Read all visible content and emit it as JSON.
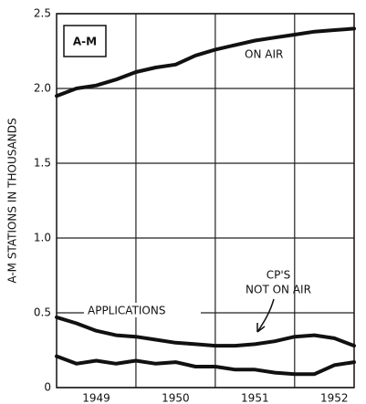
{
  "chart_data": {
    "type": "line",
    "ylabel": "A-M STATIONS IN THOUSANDS",
    "annotations": [
      "A-M",
      "ON AIR",
      "APPLICATIONS",
      "CP'S",
      "NOT ON AIR"
    ],
    "x": [
      1949,
      1949.25,
      1949.5,
      1949.75,
      1950,
      1950.25,
      1950.5,
      1950.75,
      1951,
      1951.25,
      1951.5,
      1951.75,
      1952,
      1952.25,
      1952.5,
      1952.75
    ],
    "series": [
      {
        "name": "ON AIR",
        "color": "#111111",
        "values": [
          1.95,
          2.0,
          2.02,
          2.06,
          2.11,
          2.14,
          2.16,
          2.22,
          2.26,
          2.29,
          2.32,
          2.34,
          2.36,
          2.38,
          2.39,
          2.4
        ]
      },
      {
        "name": "APPLICATIONS",
        "color": "#111111",
        "values": [
          0.47,
          0.43,
          0.38,
          0.35,
          0.34,
          0.32,
          0.3,
          0.29,
          0.28,
          0.28,
          0.29,
          0.31,
          0.34,
          0.35,
          0.33,
          0.28
        ]
      },
      {
        "name": "CP'S NOT ON AIR",
        "color": "#111111",
        "values": [
          0.21,
          0.16,
          0.18,
          0.16,
          0.18,
          0.16,
          0.17,
          0.14,
          0.14,
          0.12,
          0.12,
          0.1,
          0.09,
          0.09,
          0.15,
          0.17
        ]
      }
    ],
    "xlim": [
      1949,
      1952.75
    ],
    "xticks": [
      {
        "value": 1949.5,
        "label": "1949"
      },
      {
        "value": 1950.5,
        "label": "1950"
      },
      {
        "value": 1951.5,
        "label": "1951"
      },
      {
        "value": 1952.5,
        "label": "1952"
      }
    ],
    "ylim": [
      0,
      2.5
    ],
    "yticks": [
      0,
      0.5,
      {
        "value": 1,
        "label": "1.0"
      },
      1.5,
      {
        "value": 2,
        "label": "2.0"
      },
      2.5
    ],
    "grid": true
  }
}
